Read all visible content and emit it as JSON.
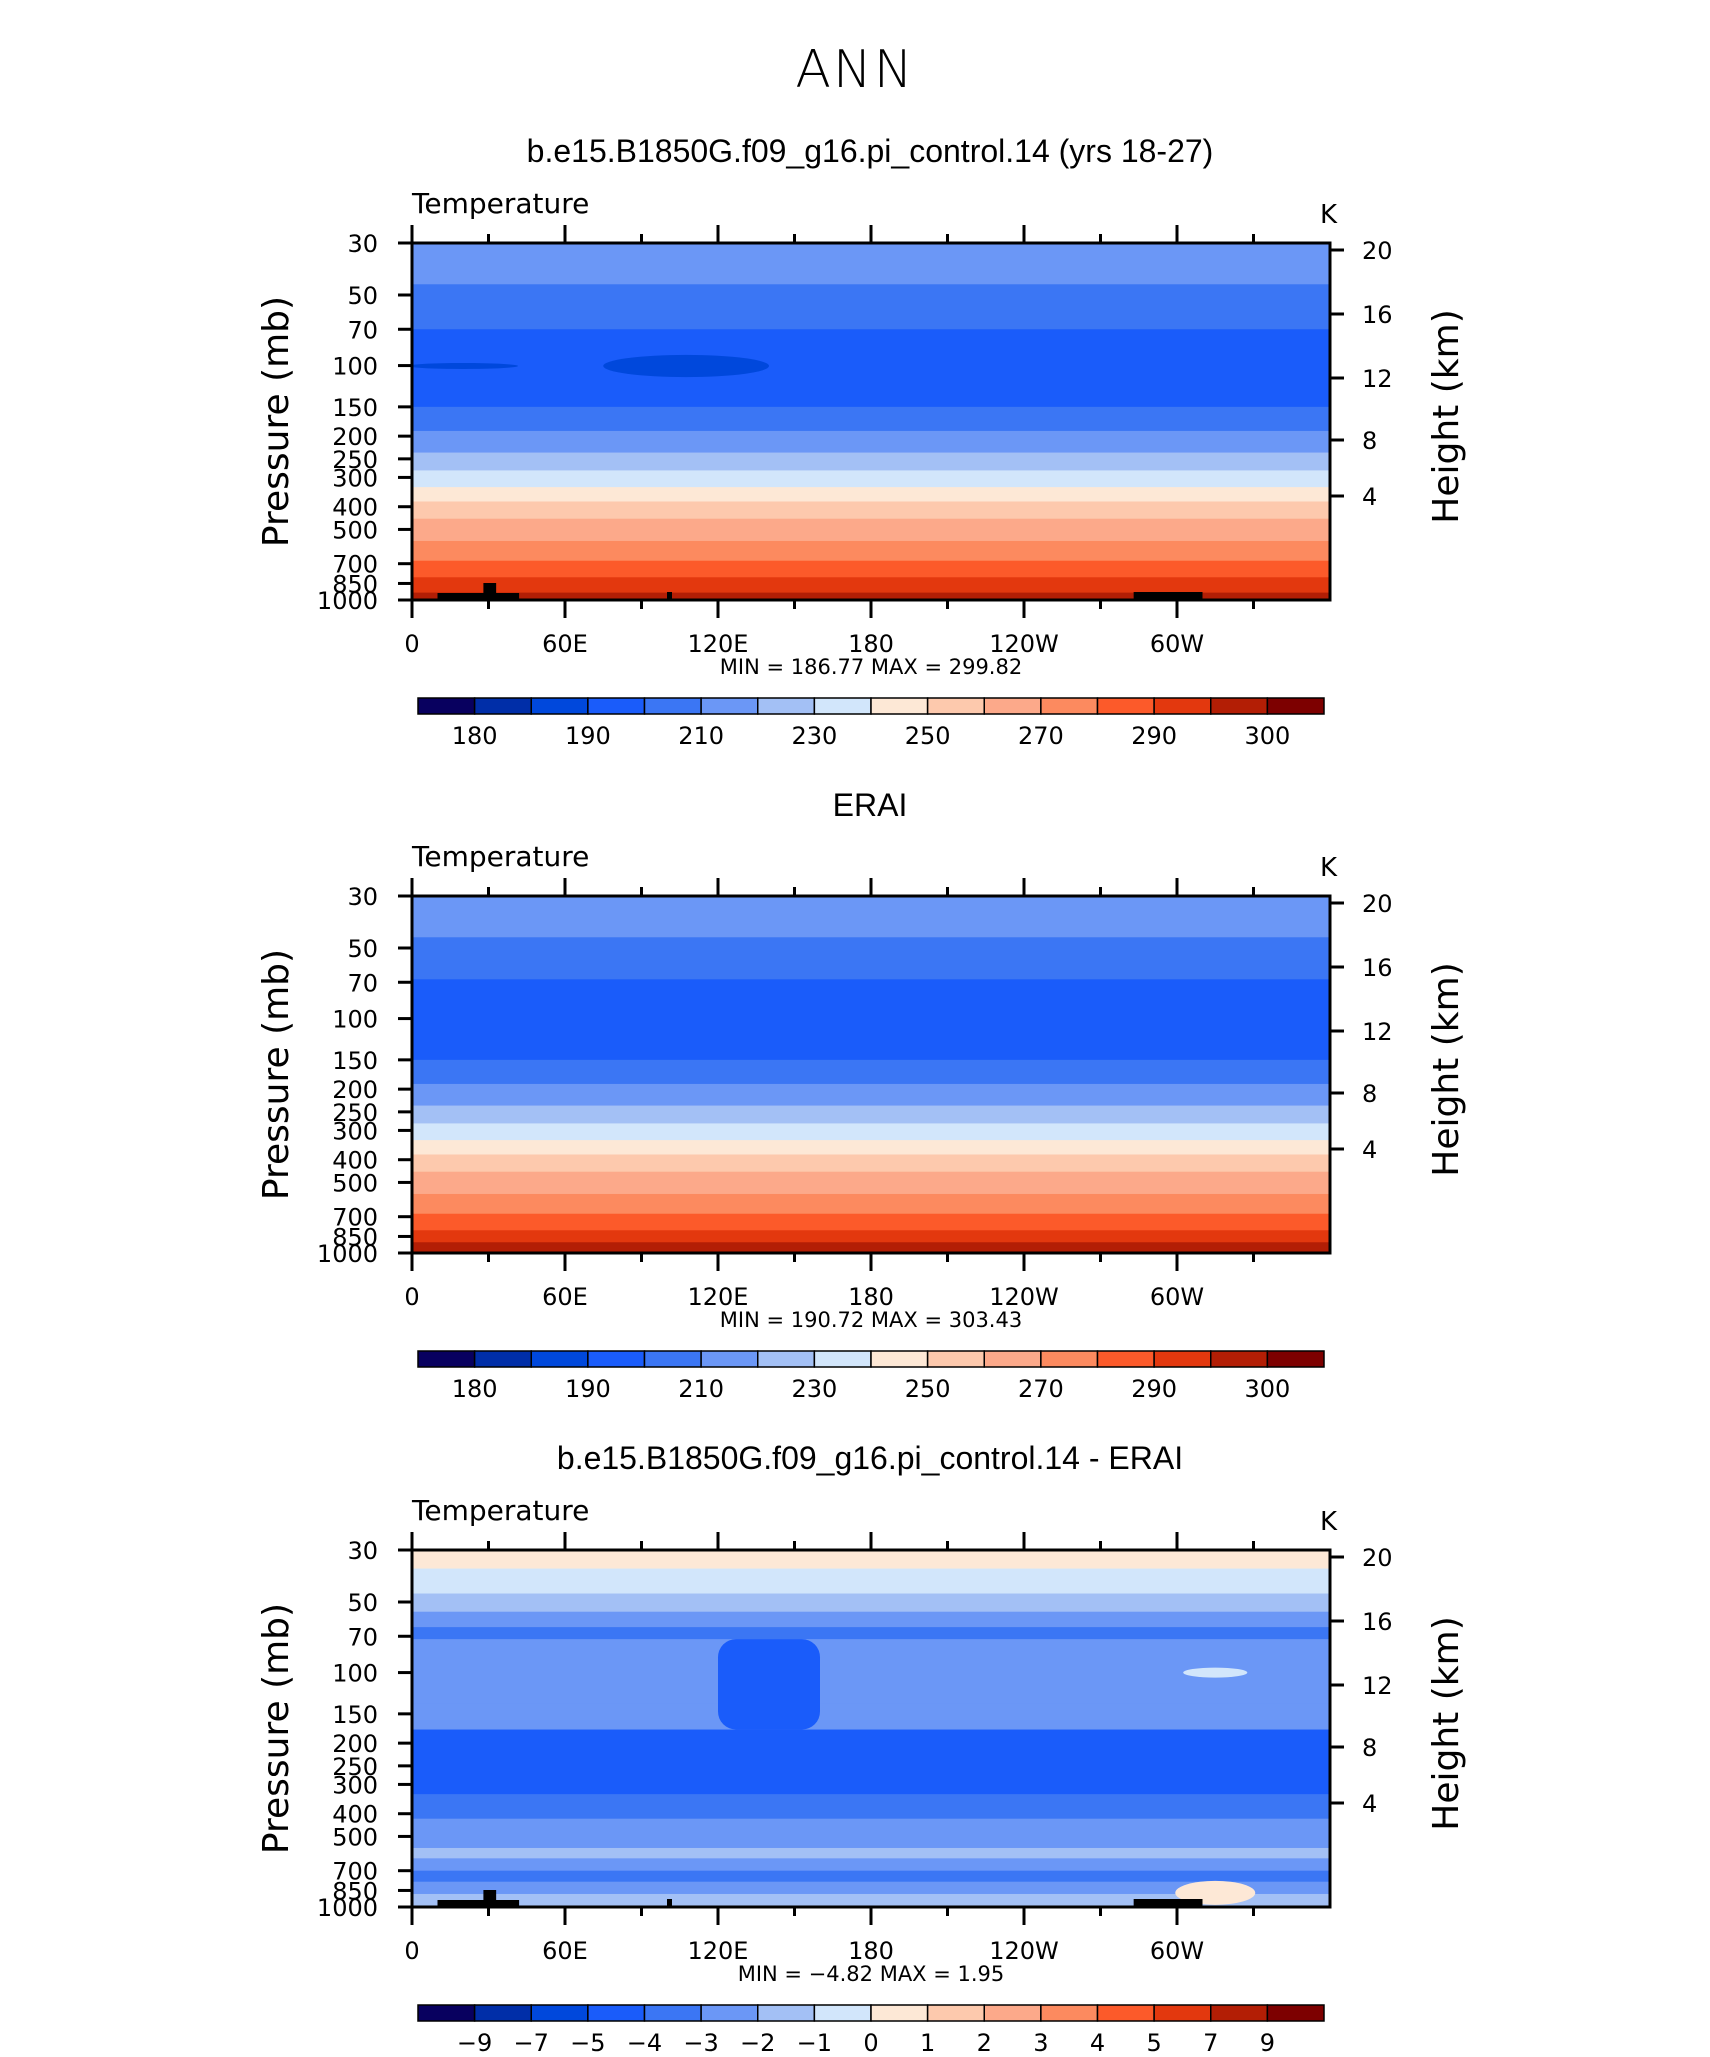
{
  "page": {
    "main_title": "ANN"
  },
  "colors": {
    "abs_palette": [
      "#08005f",
      "#002ea8",
      "#0048dc",
      "#1a5cfa",
      "#3b76f4",
      "#6b97f6",
      "#a3c0f5",
      "#d2e6fb",
      "#fde8d6",
      "#fdc9ad",
      "#fca98a",
      "#fc8a5f",
      "#fc5a2a",
      "#e3380e",
      "#b31e05",
      "#7d0000"
    ],
    "diff_palette": [
      "#08005f",
      "#002ea8",
      "#0048dc",
      "#1a5cfa",
      "#3b76f4",
      "#6b97f6",
      "#a3c0f5",
      "#d2e6fb",
      "#fde8d6",
      "#fdc9ad",
      "#fca98a",
      "#fc8a5f",
      "#fc5a2a",
      "#e3380e",
      "#b31e05",
      "#7d0000"
    ],
    "terrain": "#000000"
  },
  "chart_data": [
    {
      "type": "heatmap",
      "title": "b.e15.B1850G.f09_g16.pi_control.14 (yrs 18-27)",
      "variable": "Temperature",
      "units": "K",
      "ylabel": "Pressure (mb)",
      "ylabel_right": "Height (km)",
      "x_ticks": [
        "0",
        "60E",
        "120E",
        "180",
        "120W",
        "60W"
      ],
      "xlim": [
        0,
        360
      ],
      "y_ticks": [
        "30",
        "50",
        "70",
        "100",
        "150",
        "200",
        "250",
        "300",
        "400",
        "500",
        "700",
        "850",
        "1000"
      ],
      "y_tick_values": [
        30,
        50,
        70,
        100,
        150,
        200,
        250,
        300,
        400,
        500,
        700,
        850,
        1000
      ],
      "ylim": [
        1000,
        30
      ],
      "y_scale": "log",
      "right_ticks": [
        "20",
        "16",
        "12",
        "8",
        "4"
      ],
      "stats": "MIN  =  186.77   MAX  =  299.82",
      "colorbar_labels": [
        "180",
        "190",
        "210",
        "230",
        "250",
        "270",
        "290",
        "300"
      ],
      "colorbar_levels": [
        175,
        180,
        185,
        190,
        200,
        210,
        220,
        230,
        240,
        250,
        260,
        270,
        280,
        290,
        295,
        300
      ],
      "bands": [
        {
          "p": 30,
          "level": 5
        },
        {
          "p": 45,
          "level": 4
        },
        {
          "p": 70,
          "level": 3
        },
        {
          "p": 150,
          "level": 4
        },
        {
          "p": 190,
          "level": 5
        },
        {
          "p": 235,
          "level": 6
        },
        {
          "p": 280,
          "level": 7
        },
        {
          "p": 330,
          "level": 8
        },
        {
          "p": 380,
          "level": 9
        },
        {
          "p": 450,
          "level": 10
        },
        {
          "p": 560,
          "level": 11
        },
        {
          "p": 680,
          "level": 12
        },
        {
          "p": 800,
          "level": 13
        },
        {
          "p": 930,
          "level": 14
        }
      ],
      "cold_core": {
        "lon_start": 75,
        "lon_end": 140,
        "p_top": 90,
        "p_bottom": 112,
        "level": 2
      },
      "terrain": true
    },
    {
      "type": "heatmap",
      "title": "ERAI",
      "variable": "Temperature",
      "units": "K",
      "ylabel": "Pressure (mb)",
      "ylabel_right": "Height (km)",
      "x_ticks": [
        "0",
        "60E",
        "120E",
        "180",
        "120W",
        "60W"
      ],
      "xlim": [
        0,
        360
      ],
      "y_ticks": [
        "30",
        "50",
        "70",
        "100",
        "150",
        "200",
        "250",
        "300",
        "400",
        "500",
        "700",
        "850",
        "1000"
      ],
      "y_tick_values": [
        30,
        50,
        70,
        100,
        150,
        200,
        250,
        300,
        400,
        500,
        700,
        850,
        1000
      ],
      "ylim": [
        1000,
        30
      ],
      "y_scale": "log",
      "right_ticks": [
        "20",
        "16",
        "12",
        "8",
        "4"
      ],
      "stats": "MIN  =  190.72   MAX  =  303.43",
      "colorbar_labels": [
        "180",
        "190",
        "210",
        "230",
        "250",
        "270",
        "290",
        "300"
      ],
      "colorbar_levels": [
        175,
        180,
        185,
        190,
        200,
        210,
        220,
        230,
        240,
        250,
        260,
        270,
        280,
        290,
        295,
        300
      ],
      "bands": [
        {
          "p": 30,
          "level": 5
        },
        {
          "p": 45,
          "level": 4
        },
        {
          "p": 68,
          "level": 3
        },
        {
          "p": 150,
          "level": 4
        },
        {
          "p": 190,
          "level": 5
        },
        {
          "p": 235,
          "level": 6
        },
        {
          "p": 280,
          "level": 7
        },
        {
          "p": 330,
          "level": 8
        },
        {
          "p": 380,
          "level": 9
        },
        {
          "p": 450,
          "level": 10
        },
        {
          "p": 560,
          "level": 11
        },
        {
          "p": 680,
          "level": 12
        },
        {
          "p": 800,
          "level": 13
        },
        {
          "p": 900,
          "level": 14
        }
      ],
      "terrain": false
    },
    {
      "type": "heatmap",
      "title": "b.e15.B1850G.f09_g16.pi_control.14 - ERAI",
      "variable": "Temperature",
      "units": "K",
      "ylabel": "Pressure (mb)",
      "ylabel_right": "Height (km)",
      "x_ticks": [
        "0",
        "60E",
        "120E",
        "180",
        "120W",
        "60W"
      ],
      "xlim": [
        0,
        360
      ],
      "y_ticks": [
        "30",
        "50",
        "70",
        "100",
        "150",
        "200",
        "250",
        "300",
        "400",
        "500",
        "700",
        "850",
        "1000"
      ],
      "y_tick_values": [
        30,
        50,
        70,
        100,
        150,
        200,
        250,
        300,
        400,
        500,
        700,
        850,
        1000
      ],
      "ylim": [
        1000,
        30
      ],
      "y_scale": "log",
      "right_ticks": [
        "20",
        "16",
        "12",
        "8",
        "4"
      ],
      "stats": "MIN  =   −4.82   MAX  =     1.95",
      "colorbar_labels": [
        "−9",
        "−7",
        "−5",
        "−4",
        "−3",
        "−2",
        "−1",
        "0",
        "1",
        "2",
        "3",
        "4",
        "5",
        "7",
        "9"
      ],
      "colorbar_levels": [
        -9,
        -7,
        -5,
        -4,
        -3,
        -2,
        -1,
        0,
        1,
        2,
        3,
        4,
        5,
        7,
        9
      ],
      "bands": [
        {
          "p": 30,
          "level": 8
        },
        {
          "p": 36,
          "level": 7
        },
        {
          "p": 46,
          "level": 6
        },
        {
          "p": 55,
          "level": 5
        },
        {
          "p": 64,
          "level": 4
        },
        {
          "p": 72,
          "level": 5
        },
        {
          "p": 100,
          "level": 5
        },
        {
          "p": 135,
          "level": 5
        },
        {
          "p": 175,
          "level": 3
        },
        {
          "p": 330,
          "level": 4
        },
        {
          "p": 420,
          "level": 5
        },
        {
          "p": 560,
          "level": 6
        },
        {
          "p": 620,
          "level": 5
        },
        {
          "p": 700,
          "level": 4
        },
        {
          "p": 780,
          "level": 5
        },
        {
          "p": 880,
          "level": 6
        }
      ],
      "column": {
        "lon_start": 120,
        "lon_end": 160,
        "p_top": 72,
        "p_bottom": 175,
        "level": 3
      },
      "terrain": true
    }
  ]
}
